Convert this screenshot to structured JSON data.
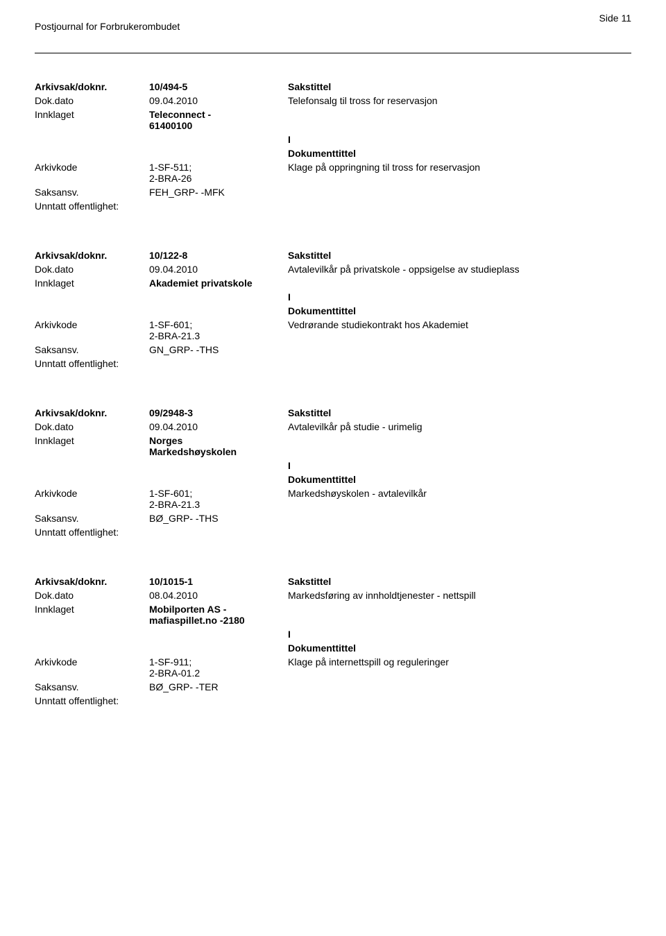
{
  "header": {
    "journal_title": "Postjournal for Forbrukerombudet",
    "page_indicator": "Side 11"
  },
  "labels": {
    "arkivsak": "Arkivsak/doknr.",
    "dokdato": "Dok.dato",
    "innklaget": "Innklaget",
    "arkivkode": "Arkivkode",
    "saksansv": "Saksansv.",
    "unntatt": "Unntatt offentlighet:",
    "sakstittel": "Sakstittel",
    "dokumenttittel": "Dokumenttittel",
    "i_marker": "I"
  },
  "entries": [
    {
      "doknr": "10/494-5",
      "dokdato": "09.04.2010",
      "sakstittel_text": "Telefonsalg til tross for reservasjon",
      "innklaget_lines": [
        "Teleconnect -",
        "61400100"
      ],
      "arkivkode_lines": [
        "1-SF-511;",
        "2-BRA-26"
      ],
      "dokumenttittel_text": "Klage på oppringning til tross for reservasjon",
      "saksansv": "FEH_GRP- -MFK"
    },
    {
      "doknr": "10/122-8",
      "dokdato": "09.04.2010",
      "sakstittel_text": "Avtalevilkår på privatskole - oppsigelse av studieplass",
      "innklaget_lines": [
        "Akademiet privatskole"
      ],
      "arkivkode_lines": [
        "1-SF-601;",
        "2-BRA-21.3"
      ],
      "dokumenttittel_text": "Vedrørande studiekontrakt hos Akademiet",
      "saksansv": "GN_GRP- -THS"
    },
    {
      "doknr": "09/2948-3",
      "dokdato": "09.04.2010",
      "sakstittel_text": "Avtalevilkår på studie - urimelig",
      "innklaget_lines": [
        "Norges",
        "Markedshøyskolen"
      ],
      "arkivkode_lines": [
        "1-SF-601;",
        "2-BRA-21.3"
      ],
      "dokumenttittel_text": "Markedshøyskolen - avtalevilkår",
      "saksansv": "BØ_GRP- -THS"
    },
    {
      "doknr": "10/1015-1",
      "dokdato": "08.04.2010",
      "sakstittel_text": "Markedsføring av innholdtjenester - nettspill",
      "innklaget_lines": [
        "Mobilporten AS -",
        "mafiaspillet.no -2180"
      ],
      "arkivkode_lines": [
        "1-SF-911;",
        "2-BRA-01.2"
      ],
      "dokumenttittel_text": "Klage på internettspill og reguleringer",
      "saksansv": "BØ_GRP- -TER"
    }
  ]
}
